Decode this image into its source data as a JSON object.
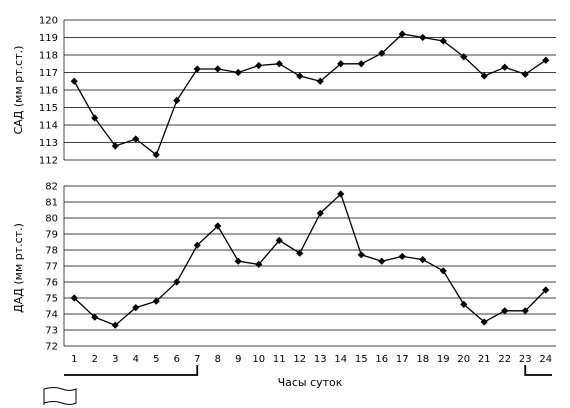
{
  "chart_data": [
    {
      "type": "line",
      "ylabel": "САД (мм рт.ст.)",
      "ylim": [
        112,
        120
      ],
      "yticks": [
        "112",
        "113",
        "114",
        "115",
        "116",
        "117",
        "118",
        "119",
        "120"
      ],
      "x": [
        1,
        2,
        3,
        4,
        5,
        6,
        7,
        8,
        9,
        10,
        11,
        12,
        13,
        14,
        15,
        16,
        17,
        18,
        19,
        20,
        21,
        22,
        23,
        24
      ],
      "values": [
        116.5,
        114.4,
        112.8,
        113.2,
        112.3,
        115.4,
        117.2,
        117.2,
        117.0,
        117.4,
        117.5,
        116.8,
        116.5,
        117.5,
        117.5,
        118.1,
        119.2,
        119.0,
        118.8,
        117.9,
        116.8,
        117.3,
        116.9,
        117.7
      ],
      "grid": true,
      "marker": "diamond"
    },
    {
      "type": "line",
      "ylabel": "ДАД (мм рт.ст.)",
      "ylim": [
        72,
        82
      ],
      "yticks": [
        "72",
        "73",
        "74",
        "75",
        "76",
        "77",
        "78",
        "79",
        "80",
        "81",
        "82"
      ],
      "x": [
        1,
        2,
        3,
        4,
        5,
        6,
        7,
        8,
        9,
        10,
        11,
        12,
        13,
        14,
        15,
        16,
        17,
        18,
        19,
        20,
        21,
        22,
        23,
        24
      ],
      "values": [
        75.0,
        73.8,
        73.3,
        74.4,
        74.8,
        76.0,
        78.3,
        79.5,
        77.3,
        77.1,
        78.6,
        77.8,
        80.3,
        81.5,
        77.7,
        77.3,
        77.6,
        77.4,
        76.7,
        74.6,
        73.5,
        74.2,
        74.2,
        75.5
      ],
      "grid": true,
      "marker": "diamond"
    }
  ],
  "x_axis": {
    "title": "Часы суток",
    "tick_labels": [
      "1",
      "2",
      "3",
      "4",
      "5",
      "6",
      "7",
      "8",
      "9",
      "10",
      "11",
      "12",
      "13",
      "14",
      "15",
      "16",
      "17",
      "18",
      "19",
      "20",
      "21",
      "22",
      "23",
      "24"
    ]
  },
  "annotations": {
    "night_bracket_1": {
      "from_hour": 1,
      "to_hour": 7
    },
    "night_bracket_2": {
      "from_hour": 23,
      "to_hour": 24
    },
    "flag_icon": "flag-icon"
  }
}
